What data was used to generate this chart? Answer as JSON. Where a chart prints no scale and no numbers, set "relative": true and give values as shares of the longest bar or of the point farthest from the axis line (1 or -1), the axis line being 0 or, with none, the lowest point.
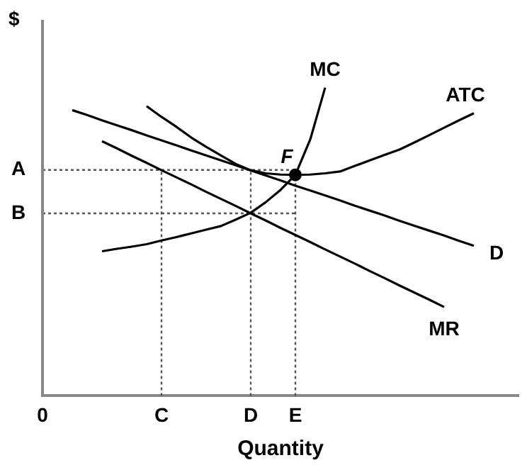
{
  "chart_data": {
    "type": "line",
    "relative": true,
    "ylabel": "$",
    "xlabel": "Quantity",
    "legend": false,
    "marker": "none",
    "categories": [
      "0",
      null,
      null,
      null,
      null,
      null,
      null,
      null,
      "C",
      null,
      null,
      null,
      null,
      null,
      "D",
      null,
      null,
      "E",
      null,
      null,
      null,
      null,
      null,
      null,
      null,
      null,
      null,
      null,
      null,
      null,
      null,
      null,
      null
    ],
    "series": [
      {
        "name": "MC",
        "color": "#000000",
        "values": [
          null,
          null,
          null,
          null,
          0.469,
          0.477,
          0.484,
          0.492,
          0.504,
          0.515,
          0.527,
          0.539,
          0.551,
          0.572,
          0.594,
          0.628,
          0.668,
          0.717,
          0.832,
          1.0,
          null,
          null,
          null,
          null,
          null,
          null,
          null,
          null,
          null,
          null,
          null,
          null,
          null
        ]
      },
      {
        "name": "ATC",
        "color": "#000000",
        "values": [
          null,
          null,
          null,
          null,
          null,
          null,
          null,
          0.94,
          0.905,
          0.873,
          0.838,
          0.808,
          0.78,
          0.752,
          0.732,
          0.722,
          0.718,
          0.717,
          0.718,
          0.722,
          0.728,
          0.746,
          0.764,
          0.782,
          0.799,
          0.822,
          0.846,
          0.87,
          0.894,
          0.917,
          null,
          null,
          null
        ]
      },
      {
        "name": "D",
        "color": "#000000",
        "values": [
          null,
          null,
          0.927,
          0.911,
          0.894,
          0.878,
          0.862,
          0.845,
          0.829,
          0.813,
          0.796,
          0.78,
          0.764,
          0.748,
          0.731,
          0.715,
          0.699,
          0.682,
          0.666,
          0.65,
          0.634,
          0.617,
          0.601,
          0.585,
          0.568,
          0.552,
          0.536,
          0.52,
          0.503,
          0.487,
          null,
          null,
          null
        ]
      },
      {
        "name": "MR",
        "color": "#000000",
        "values": [
          null,
          null,
          null,
          null,
          0.826,
          0.803,
          0.779,
          0.756,
          0.732,
          0.709,
          0.686,
          0.662,
          0.639,
          0.616,
          0.592,
          0.569,
          0.545,
          0.522,
          0.499,
          0.475,
          0.452,
          0.429,
          0.405,
          0.382,
          0.358,
          0.335,
          0.312,
          0.288,
          null,
          null,
          null,
          null,
          null
        ]
      },
      {
        "type": "scatter",
        "color": "#000000",
        "marker": "circle",
        "x": [
          "E"
        ],
        "values": [
          0.717
        ]
      }
    ],
    "ref_lines": [
      {
        "axis": "y",
        "value": 0.733,
        "label": "A",
        "color": "#555555",
        "line_style": "dotted"
      },
      {
        "axis": "y",
        "value": 0.592,
        "label": "B",
        "color": "#555555",
        "line_style": "dotted"
      },
      {
        "axis": "x",
        "value": "C",
        "color": "#555555",
        "line_style": "dotted"
      },
      {
        "axis": "x",
        "value": "D",
        "color": "#555555",
        "line_style": "dotted"
      },
      {
        "axis": "x",
        "value": "E",
        "color": "#555555",
        "line_style": "dotted"
      }
    ],
    "annotations": [
      {
        "text": "F",
        "x": "E",
        "y": 0.717
      }
    ]
  }
}
